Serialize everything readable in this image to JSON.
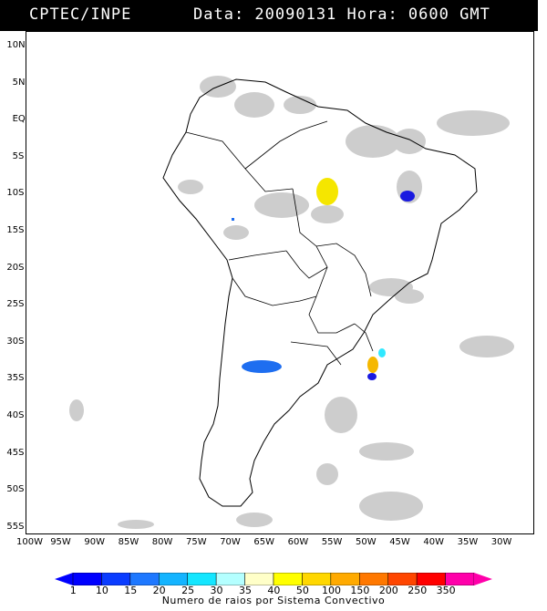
{
  "header": {
    "source": "CPTEC/INPE",
    "datetime": "Data: 20090131 Hora: 0600 GMT"
  },
  "map": {
    "lat_labels": [
      "10N",
      "5N",
      "EQ",
      "5S",
      "10S",
      "15S",
      "20S",
      "25S",
      "30S",
      "35S",
      "40S",
      "45S",
      "50S",
      "55S"
    ],
    "lon_labels": [
      "100W",
      "95W",
      "90W",
      "85W",
      "80W",
      "75W",
      "70W",
      "65W",
      "60W",
      "55W",
      "50W",
      "45W",
      "40W",
      "35W",
      "30W"
    ],
    "colors": {
      "cloud": "#c8c8c8",
      "cell_dark_blue": "#1a1ae0",
      "cell_blue": "#1e6ef0",
      "cell_cyan": "#30e8ff",
      "cell_yellow": "#f5e600",
      "cell_gold": "#f5b800"
    }
  },
  "colorbar": {
    "labels": [
      "1",
      "10",
      "15",
      "20",
      "25",
      "30",
      "35",
      "40",
      "50",
      "100",
      "150",
      "200",
      "250",
      "350"
    ],
    "colors": [
      "#0000ff",
      "#0a3cff",
      "#1e78ff",
      "#14b4ff",
      "#14e6ff",
      "#b4ffff",
      "#ffffc8",
      "#ffff00",
      "#ffd700",
      "#ffaa00",
      "#ff7800",
      "#ff4600",
      "#ff0000",
      "#ff00aa"
    ],
    "caption": "Numero de raios por Sistema Convectivo"
  }
}
